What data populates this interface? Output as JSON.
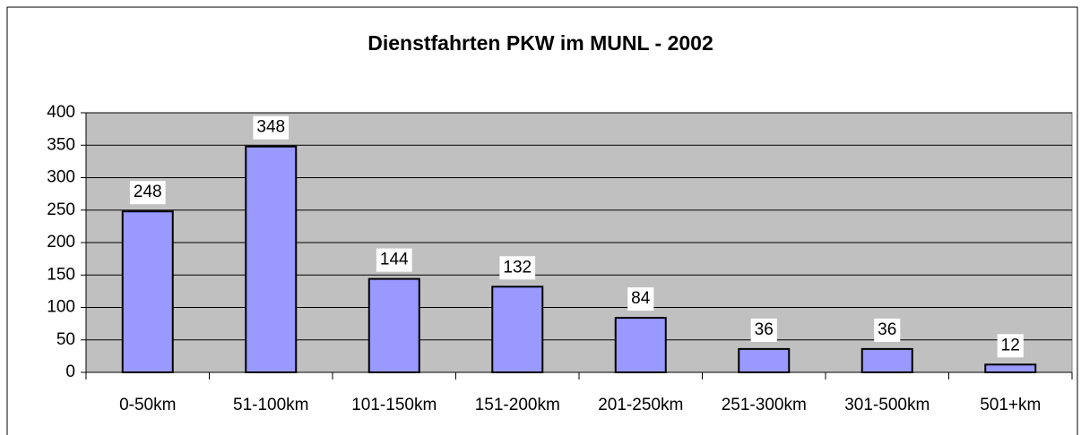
{
  "chart_data": {
    "type": "bar",
    "title": "Dienstfahrten PKW im MUNL - 2002",
    "categories": [
      "0-50km",
      "51-100km",
      "101-150km",
      "151-200km",
      "201-250km",
      "251-300km",
      "301-500km",
      "501+km"
    ],
    "values": [
      248,
      348,
      144,
      132,
      84,
      36,
      36,
      12
    ],
    "color": "#9999ff",
    "ylim": [
      0,
      400
    ],
    "yticks": [
      0,
      50,
      100,
      150,
      200,
      250,
      300,
      350,
      400
    ],
    "grid": true
  }
}
